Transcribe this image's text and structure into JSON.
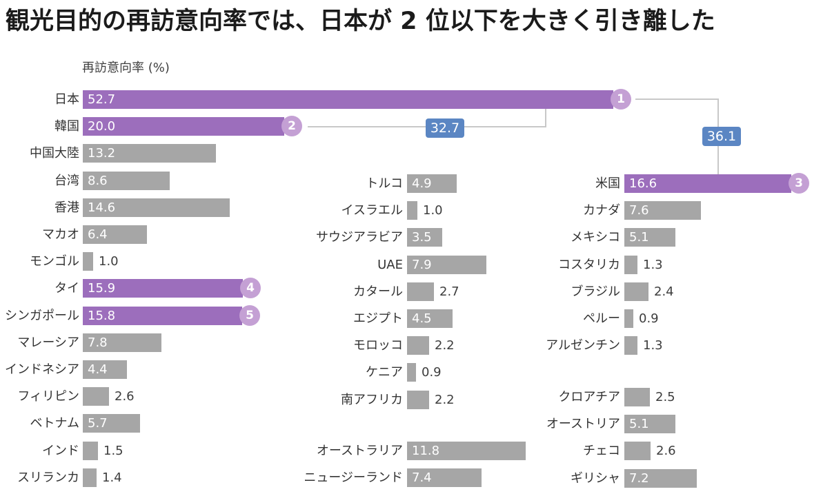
{
  "title": "観光目的の再訪意向率では、日本が 2 位以下を大きく引き離した",
  "axis_label": "再訪意向率 (%)",
  "colors": {
    "highlight_bar": "#9c6ebc",
    "default_bar": "#a6a6a6",
    "rank_badge": "#c4a0d4",
    "diff_badge": "#5b86c3",
    "connector": "#c8c8c8"
  },
  "annotations": [
    {
      "label": "32.7",
      "meaning": "difference between 日本 and 韓国"
    },
    {
      "label": "36.1",
      "meaning": "difference between 日本 and 米国"
    }
  ],
  "chart_data": {
    "type": "bar",
    "orientation": "horizontal",
    "title": "観光目的の再訪意向率では、日本が 2 位以下を大きく引き離した",
    "value_axis_label": "再訪意向率 (%)",
    "unit": "%",
    "differences": [
      {
        "between": [
          "日本",
          "韓国"
        ],
        "value": 32.7
      },
      {
        "between": [
          "日本",
          "米国"
        ],
        "value": 36.1
      }
    ],
    "groups": [
      {
        "id": "east_south_asia",
        "items": [
          {
            "label": "日本",
            "value": 52.7,
            "highlight": true,
            "rank": 1
          },
          {
            "label": "韓国",
            "value": 20.0,
            "highlight": true,
            "rank": 2
          },
          {
            "label": "中国大陸",
            "value": 13.2,
            "highlight": false
          },
          {
            "label": "台湾",
            "value": 8.6,
            "highlight": false
          },
          {
            "label": "香港",
            "value": 14.6,
            "highlight": false
          },
          {
            "label": "マカオ",
            "value": 6.4,
            "highlight": false
          },
          {
            "label": "モンゴル",
            "value": 1.0,
            "highlight": false
          },
          {
            "label": "タイ",
            "value": 15.9,
            "highlight": true,
            "rank": 4
          },
          {
            "label": "シンガポール",
            "value": 15.8,
            "highlight": true,
            "rank": 5
          },
          {
            "label": "マレーシア",
            "value": 7.8,
            "highlight": false
          },
          {
            "label": "インドネシア",
            "value": 4.4,
            "highlight": false
          },
          {
            "label": "フィリピン",
            "value": 2.6,
            "highlight": false
          },
          {
            "label": "ベトナム",
            "value": 5.7,
            "highlight": false
          },
          {
            "label": "インド",
            "value": 1.5,
            "highlight": false
          },
          {
            "label": "スリランカ",
            "value": 1.4,
            "highlight": false
          }
        ]
      },
      {
        "id": "middle_east_africa",
        "items": [
          {
            "label": "トルコ",
            "value": 4.9,
            "highlight": false
          },
          {
            "label": "イスラエル",
            "value": 1.0,
            "highlight": false
          },
          {
            "label": "サウジアラビア",
            "value": 3.5,
            "highlight": false
          },
          {
            "label": "UAE",
            "value": 7.9,
            "highlight": false
          },
          {
            "label": "カタール",
            "value": 2.7,
            "highlight": false
          },
          {
            "label": "エジプト",
            "value": 4.5,
            "highlight": false
          },
          {
            "label": "モロッコ",
            "value": 2.2,
            "highlight": false
          },
          {
            "label": "ケニア",
            "value": 0.9,
            "highlight": false
          },
          {
            "label": "南アフリカ",
            "value": 2.2,
            "highlight": false
          }
        ]
      },
      {
        "id": "oceania",
        "items": [
          {
            "label": "オーストラリア",
            "value": 11.8,
            "highlight": false
          },
          {
            "label": "ニュージーランド",
            "value": 7.4,
            "highlight": false
          }
        ]
      },
      {
        "id": "americas",
        "items": [
          {
            "label": "米国",
            "value": 16.6,
            "highlight": true,
            "rank": 3
          },
          {
            "label": "カナダ",
            "value": 7.6,
            "highlight": false
          },
          {
            "label": "メキシコ",
            "value": 5.1,
            "highlight": false
          },
          {
            "label": "コスタリカ",
            "value": 1.3,
            "highlight": false
          },
          {
            "label": "ブラジル",
            "value": 2.4,
            "highlight": false
          },
          {
            "label": "ペルー",
            "value": 0.9,
            "highlight": false
          },
          {
            "label": "アルゼンチン",
            "value": 1.3,
            "highlight": false
          }
        ]
      },
      {
        "id": "europe",
        "items": [
          {
            "label": "クロアチア",
            "value": 2.5,
            "highlight": false
          },
          {
            "label": "オーストリア",
            "value": 5.1,
            "highlight": false
          },
          {
            "label": "チェコ",
            "value": 2.6,
            "highlight": false
          },
          {
            "label": "ギリシャ",
            "value": 7.2,
            "highlight": false
          }
        ]
      }
    ]
  }
}
